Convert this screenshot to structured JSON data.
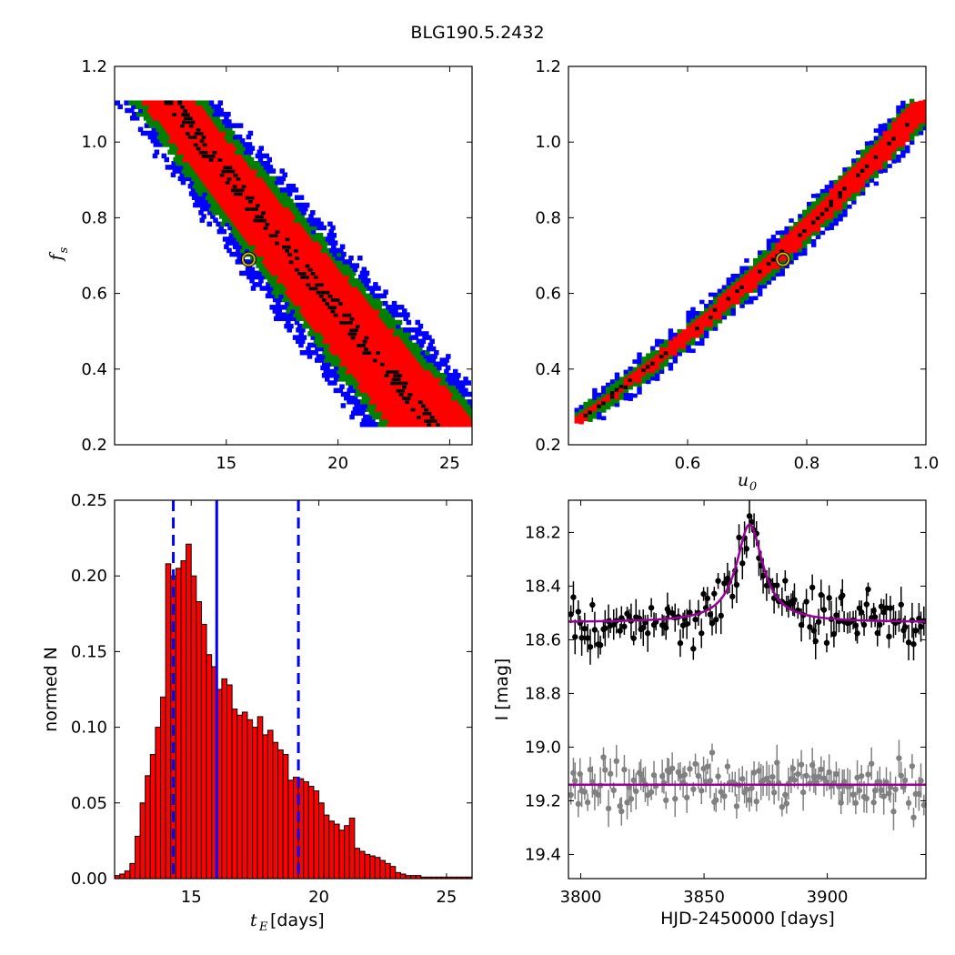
{
  "figure": {
    "title": "BLG190.5.2432"
  },
  "colors": {
    "cl1": "#ff0000",
    "cl2": "#008000",
    "cl3": "#0000ff",
    "best": "#000000",
    "marker": "#c8b400",
    "hist_fill": "#ff0000",
    "hist_line": "#0000ff",
    "model": "#990099",
    "obs": "#000000",
    "resid": "#808080"
  },
  "chart_data": [
    {
      "type": "heatmap",
      "panel": "top-left",
      "xlabel": "",
      "ylabel_main": "f",
      "ylabel_sub": "s",
      "xlim": [
        10,
        26
      ],
      "ylim": [
        0.2,
        1.2
      ],
      "xticks": [
        "15",
        "20",
        "25"
      ],
      "xtick_values": [
        15,
        20,
        25
      ],
      "yticks": [
        "0.2",
        "0.4",
        "0.6",
        "0.8",
        "1.0",
        "1.2"
      ],
      "ytick_values": [
        0.2,
        0.4,
        0.6,
        0.8,
        1.0,
        1.2
      ],
      "confidence_bands": [
        {
          "level": "blue",
          "x_at_fs_1_1": 12.3,
          "x_at_fs_0_25": 25.8
        },
        {
          "level": "green",
          "x_at_fs_1_1": 12.8,
          "x_at_fs_0_28": 24.5
        },
        {
          "level": "red",
          "x_at_fs_1_1": 13.2,
          "x_at_fs_0_3": 23.5
        }
      ],
      "best_fit": {
        "tE": 16.0,
        "fs": 0.69
      }
    },
    {
      "type": "heatmap",
      "panel": "top-right",
      "xlabel_main": "u",
      "xlabel_sub": "0",
      "xlim": [
        0.4,
        1.0
      ],
      "ylim": [
        0.2,
        1.2
      ],
      "xticks": [
        "0.6",
        "0.8",
        "1.0"
      ],
      "xtick_values": [
        0.6,
        0.8,
        1.0
      ],
      "yticks": [
        "0.2",
        "0.4",
        "0.6",
        "0.8",
        "1.0",
        "1.2"
      ],
      "ytick_values": [
        0.2,
        0.4,
        0.6,
        0.8,
        1.0,
        1.2
      ],
      "confidence_bands": [
        {
          "level": "blue",
          "from": [
            0.41,
            0.26
          ],
          "to": [
            1.0,
            1.1
          ]
        },
        {
          "level": "green",
          "from": [
            0.42,
            0.27
          ],
          "to": [
            1.0,
            1.1
          ]
        },
        {
          "level": "red",
          "from": [
            0.43,
            0.28
          ],
          "to": [
            1.0,
            1.1
          ]
        }
      ],
      "best_fit": {
        "u0": 0.76,
        "fs": 0.69
      }
    },
    {
      "type": "bar",
      "panel": "bottom-left",
      "xlabel_main": "t",
      "xlabel_sub": "E",
      "xlabel_unit": " [days]",
      "ylabel": "normed N",
      "xlim": [
        12,
        26
      ],
      "ylim": [
        0.0,
        0.25
      ],
      "xticks": [
        "15",
        "20",
        "25"
      ],
      "xtick_values": [
        15,
        20,
        25
      ],
      "yticks": [
        "0.00",
        "0.05",
        "0.10",
        "0.15",
        "0.20",
        "0.25"
      ],
      "ytick_values": [
        0.0,
        0.05,
        0.1,
        0.15,
        0.2,
        0.25
      ],
      "bin_start": 12.0,
      "bin_width": 0.2,
      "values": [
        0.002,
        0.003,
        0.005,
        0.01,
        0.028,
        0.05,
        0.068,
        0.082,
        0.1,
        0.12,
        0.208,
        0.2,
        0.205,
        0.21,
        0.221,
        0.2,
        0.183,
        0.168,
        0.148,
        0.14,
        0.125,
        0.132,
        0.128,
        0.112,
        0.108,
        0.11,
        0.105,
        0.1,
        0.107,
        0.095,
        0.098,
        0.09,
        0.085,
        0.082,
        0.065,
        0.067,
        0.066,
        0.064,
        0.061,
        0.058,
        0.05,
        0.042,
        0.038,
        0.036,
        0.032,
        0.035,
        0.04,
        0.02,
        0.018,
        0.016,
        0.015,
        0.014,
        0.012,
        0.01,
        0.008,
        0.004,
        0.003,
        0.002,
        0.002,
        0.002,
        0.001,
        0.001,
        0.001,
        0.001,
        0.001,
        0.001,
        0.001,
        0.001,
        0.001,
        0.001
      ],
      "median_line": 16.0,
      "interval_lines": [
        14.3,
        19.2
      ]
    },
    {
      "type": "scatter",
      "panel": "bottom-right",
      "xlabel": "HJD-2450000 [days]",
      "ylabel": "I [mag]",
      "xlim": [
        3795,
        3940
      ],
      "ylim": [
        19.49,
        18.08
      ],
      "xticks": [
        "3800",
        "3850",
        "3900"
      ],
      "xtick_values": [
        3800,
        3850,
        3900
      ],
      "yticks": [
        "18.2",
        "18.4",
        "18.6",
        "18.8",
        "19.0",
        "19.2",
        "19.4"
      ],
      "ytick_values": [
        18.2,
        18.4,
        18.6,
        18.8,
        19.0,
        19.2,
        19.4
      ],
      "model": {
        "t0": 3868.5,
        "baseline": 18.535,
        "peak": 18.17,
        "half_width": 6.5
      },
      "residual_baseline": 19.14,
      "series": [
        {
          "name": "data",
          "role": "observations"
        },
        {
          "name": "residuals",
          "role": "offset residuals"
        }
      ]
    }
  ]
}
